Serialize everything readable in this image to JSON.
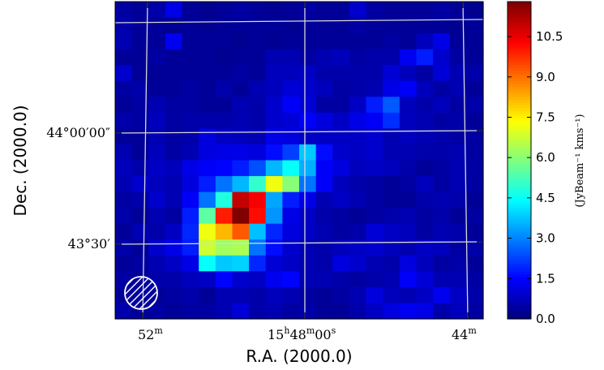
{
  "chart_data": {
    "type": "heatmap",
    "title": "",
    "xlabel": "R.A. (2000.0)",
    "ylabel": "Dec. (2000.0)",
    "x_tick_labels": [
      {
        "main": "52",
        "sup": "m"
      },
      {
        "main": "15",
        "sup": "h",
        "main2": "48",
        "sup2": "m",
        "main3": "00",
        "sup3": "s"
      },
      {
        "main": "44",
        "sup": "m"
      }
    ],
    "y_tick_labels": [
      "44°00′00″",
      "43°30′"
    ],
    "colorbar": {
      "label": "(JyBeam⁻¹ kms⁻¹)",
      "range": [
        0.0,
        11.8
      ],
      "ticks": [
        "0.0",
        "1.5",
        "3.0",
        "4.5",
        "6.0",
        "7.5",
        "9.0",
        "10.5"
      ],
      "tick_values": [
        0.0,
        1.5,
        3.0,
        4.5,
        6.0,
        7.5,
        9.0,
        10.5
      ],
      "colormap": "jet"
    },
    "grid": true,
    "grid_color": "#d8d8d8",
    "beam_marker": "hatched-circle",
    "values": [
      [
        0.4,
        0.3,
        0.5,
        1.2,
        0.3,
        0.2,
        0.3,
        0.4,
        0.3,
        0.2,
        0.3,
        0.4,
        0.3,
        0.3,
        0.9,
        0.4,
        0.3,
        0.3,
        0.3,
        0.4,
        0.3,
        0.2
      ],
      [
        0.5,
        0.3,
        0.3,
        0.2,
        0.3,
        0.2,
        0.3,
        0.3,
        0.3,
        0.3,
        0.2,
        0.3,
        0.3,
        0.3,
        0.4,
        0.3,
        0.3,
        0.3,
        0.3,
        0.3,
        0.2,
        0.3
      ],
      [
        0.6,
        0.3,
        0.3,
        1.3,
        0.3,
        0.3,
        0.3,
        0.2,
        0.3,
        0.2,
        0.3,
        0.3,
        0.3,
        0.3,
        0.3,
        0.3,
        0.4,
        0.3,
        0.7,
        1.2,
        0.3,
        0.3
      ],
      [
        0.3,
        0.3,
        0.4,
        0.3,
        0.3,
        0.3,
        0.2,
        0.3,
        0.3,
        0.6,
        0.6,
        0.4,
        0.6,
        0.7,
        0.4,
        0.5,
        0.5,
        1.3,
        1.8,
        0.9,
        0.4,
        0.3
      ],
      [
        0.9,
        0.3,
        0.3,
        0.3,
        0.3,
        0.3,
        0.3,
        0.4,
        0.3,
        0.7,
        0.7,
        0.8,
        0.5,
        0.5,
        0.5,
        0.5,
        1.0,
        0.7,
        0.4,
        1.0,
        0.6,
        0.5
      ],
      [
        0.4,
        0.5,
        0.3,
        0.3,
        0.4,
        0.3,
        0.5,
        0.3,
        0.6,
        0.7,
        1.0,
        0.9,
        0.7,
        0.4,
        0.5,
        0.6,
        1.2,
        1.4,
        0.7,
        0.4,
        0.6,
        0.3
      ],
      [
        0.3,
        0.4,
        0.6,
        0.4,
        0.4,
        0.3,
        0.3,
        0.6,
        0.5,
        0.9,
        1.4,
        1.0,
        0.4,
        0.4,
        0.8,
        1.8,
        2.5,
        0.7,
        0.5,
        0.7,
        0.4,
        0.5
      ],
      [
        0.5,
        0.4,
        0.7,
        0.4,
        0.5,
        0.5,
        0.5,
        0.6,
        0.5,
        0.9,
        1.0,
        1.4,
        1.1,
        0.8,
        1.2,
        1.4,
        2.0,
        0.7,
        0.6,
        0.4,
        0.5,
        0.3
      ],
      [
        0.3,
        0.3,
        0.6,
        0.4,
        0.5,
        1.1,
        0.8,
        0.7,
        0.6,
        1.2,
        1.1,
        0.8,
        0.8,
        0.8,
        0.8,
        0.9,
        0.6,
        0.7,
        0.6,
        0.5,
        0.4,
        0.4
      ],
      [
        0.6,
        0.3,
        0.7,
        0.4,
        0.6,
        1.1,
        1.2,
        1.2,
        1.1,
        1.6,
        2.2,
        3.8,
        1.6,
        0.9,
        0.8,
        0.9,
        0.6,
        0.6,
        0.5,
        0.5,
        0.6,
        0.4
      ],
      [
        0.7,
        0.5,
        0.8,
        0.7,
        1.2,
        1.4,
        1.5,
        1.8,
        2.4,
        3.6,
        4.5,
        3.5,
        1.4,
        1.1,
        0.7,
        0.8,
        0.7,
        0.5,
        0.3,
        0.4,
        0.6,
        0.4
      ],
      [
        0.6,
        0.9,
        0.7,
        0.6,
        1.1,
        1.8,
        2.8,
        3.6,
        5.0,
        7.2,
        6.0,
        2.8,
        1.4,
        0.7,
        0.5,
        0.4,
        0.3,
        0.4,
        0.7,
        0.4,
        0.6,
        0.4
      ],
      [
        0.4,
        0.5,
        0.9,
        0.6,
        1.4,
        2.8,
        4.8,
        11.0,
        10.4,
        3.4,
        1.8,
        1.2,
        0.6,
        0.8,
        0.6,
        0.4,
        0.3,
        0.3,
        0.5,
        0.6,
        0.5,
        0.3
      ],
      [
        0.5,
        0.3,
        0.6,
        0.4,
        1.8,
        5.5,
        10.0,
        11.8,
        10.2,
        3.2,
        1.2,
        0.8,
        0.5,
        0.4,
        0.3,
        0.4,
        0.5,
        0.6,
        0.4,
        0.5,
        0.3,
        0.4
      ],
      [
        0.3,
        0.6,
        0.5,
        0.8,
        1.9,
        7.2,
        8.2,
        9.3,
        3.7,
        1.9,
        1.1,
        0.8,
        0.6,
        0.4,
        0.5,
        1.0,
        0.8,
        0.7,
        0.4,
        0.6,
        0.5,
        0.3
      ],
      [
        0.5,
        0.3,
        0.9,
        1.2,
        1.8,
        6.8,
        6.3,
        6.4,
        2.8,
        1.6,
        0.9,
        0.6,
        0.5,
        0.7,
        0.8,
        0.9,
        0.7,
        0.6,
        0.8,
        0.7,
        0.4,
        0.5
      ],
      [
        0.3,
        0.4,
        0.6,
        0.8,
        1.2,
        4.5,
        3.8,
        3.9,
        1.9,
        1.0,
        0.8,
        0.6,
        0.5,
        1.1,
        0.9,
        0.6,
        0.5,
        1.1,
        0.7,
        0.4,
        0.5,
        0.3
      ],
      [
        0.4,
        0.3,
        0.5,
        0.5,
        0.7,
        0.8,
        1.5,
        0.9,
        0.8,
        1.3,
        1.5,
        0.6,
        0.6,
        0.5,
        0.4,
        0.5,
        0.6,
        1.4,
        1.0,
        0.6,
        0.6,
        0.4
      ],
      [
        0.3,
        0.4,
        0.3,
        0.4,
        0.5,
        0.3,
        0.6,
        0.6,
        0.5,
        0.7,
        0.6,
        0.4,
        0.3,
        0.4,
        0.6,
        1.1,
        0.7,
        0.6,
        0.8,
        1.3,
        0.8,
        0.5
      ],
      [
        0.5,
        0.3,
        0.4,
        0.3,
        0.4,
        0.4,
        0.6,
        1.0,
        0.5,
        0.6,
        0.4,
        0.5,
        0.3,
        0.3,
        0.5,
        0.8,
        1.1,
        1.3,
        1.2,
        0.5,
        0.7,
        0.4
      ]
    ]
  }
}
